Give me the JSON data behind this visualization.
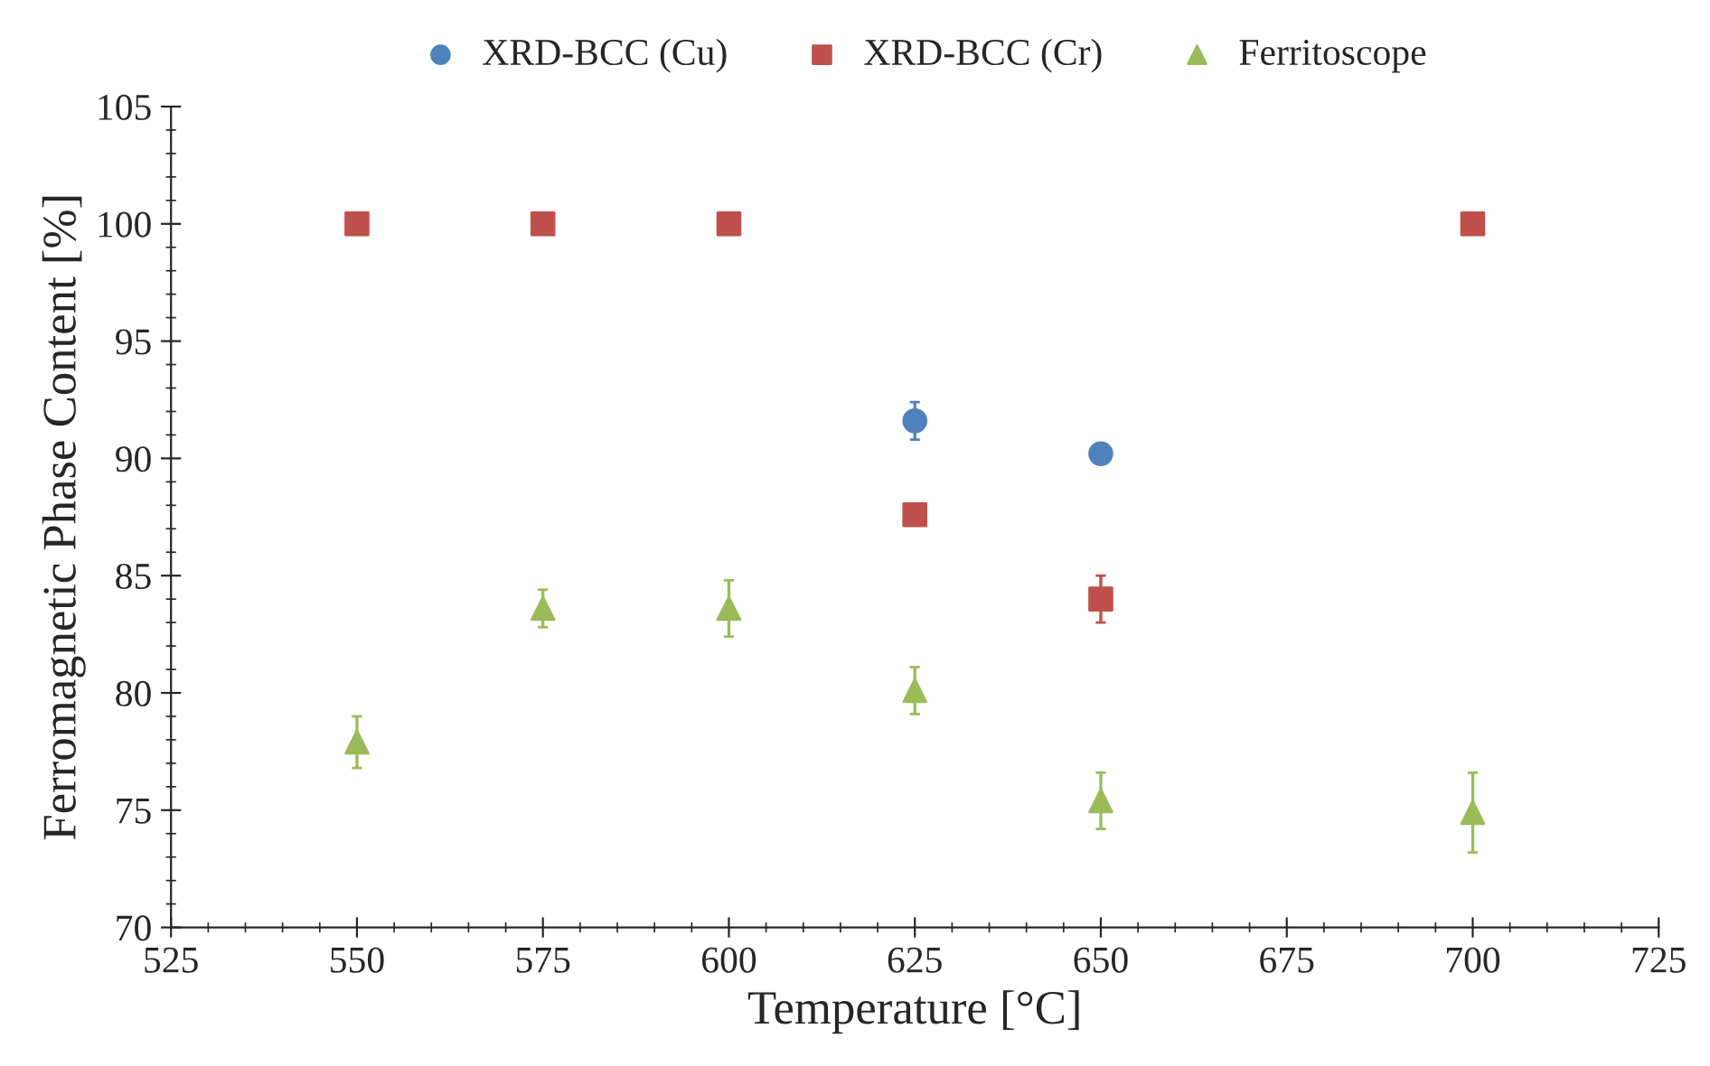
{
  "chart_data": {
    "type": "scatter",
    "xlabel": "Temperature [°C]",
    "ylabel": "Ferromagnetic Phase Content [%]",
    "xlim": [
      525,
      725
    ],
    "xticks": [
      525,
      550,
      575,
      600,
      625,
      650,
      675,
      700,
      725
    ],
    "ylim": [
      70,
      105
    ],
    "yticks": [
      70,
      75,
      80,
      85,
      90,
      95,
      100,
      105
    ],
    "grid": false,
    "legend": "top",
    "series": [
      {
        "name": "XRD-BCC (Cu)",
        "color": "#4f81bd",
        "marker": "circle",
        "x": [
          625,
          650
        ],
        "values": [
          91.6,
          90.2
        ],
        "errors": [
          0.8,
          null
        ]
      },
      {
        "name": "XRD-BCC (Cr)",
        "color": "#c0504d",
        "marker": "square",
        "x": [
          550,
          575,
          600,
          625,
          650,
          700
        ],
        "values": [
          100,
          100,
          100,
          87.6,
          84.0,
          100
        ],
        "errors": [
          null,
          null,
          null,
          null,
          1.0,
          null
        ]
      },
      {
        "name": "Ferritoscope",
        "color": "#9bbb59",
        "marker": "triangle",
        "x": [
          550,
          575,
          600,
          625,
          650,
          700
        ],
        "values": [
          77.9,
          83.6,
          83.6,
          80.1,
          75.4,
          74.9
        ],
        "errors": [
          1.1,
          0.8,
          1.2,
          1.0,
          1.2,
          1.7
        ]
      }
    ]
  }
}
